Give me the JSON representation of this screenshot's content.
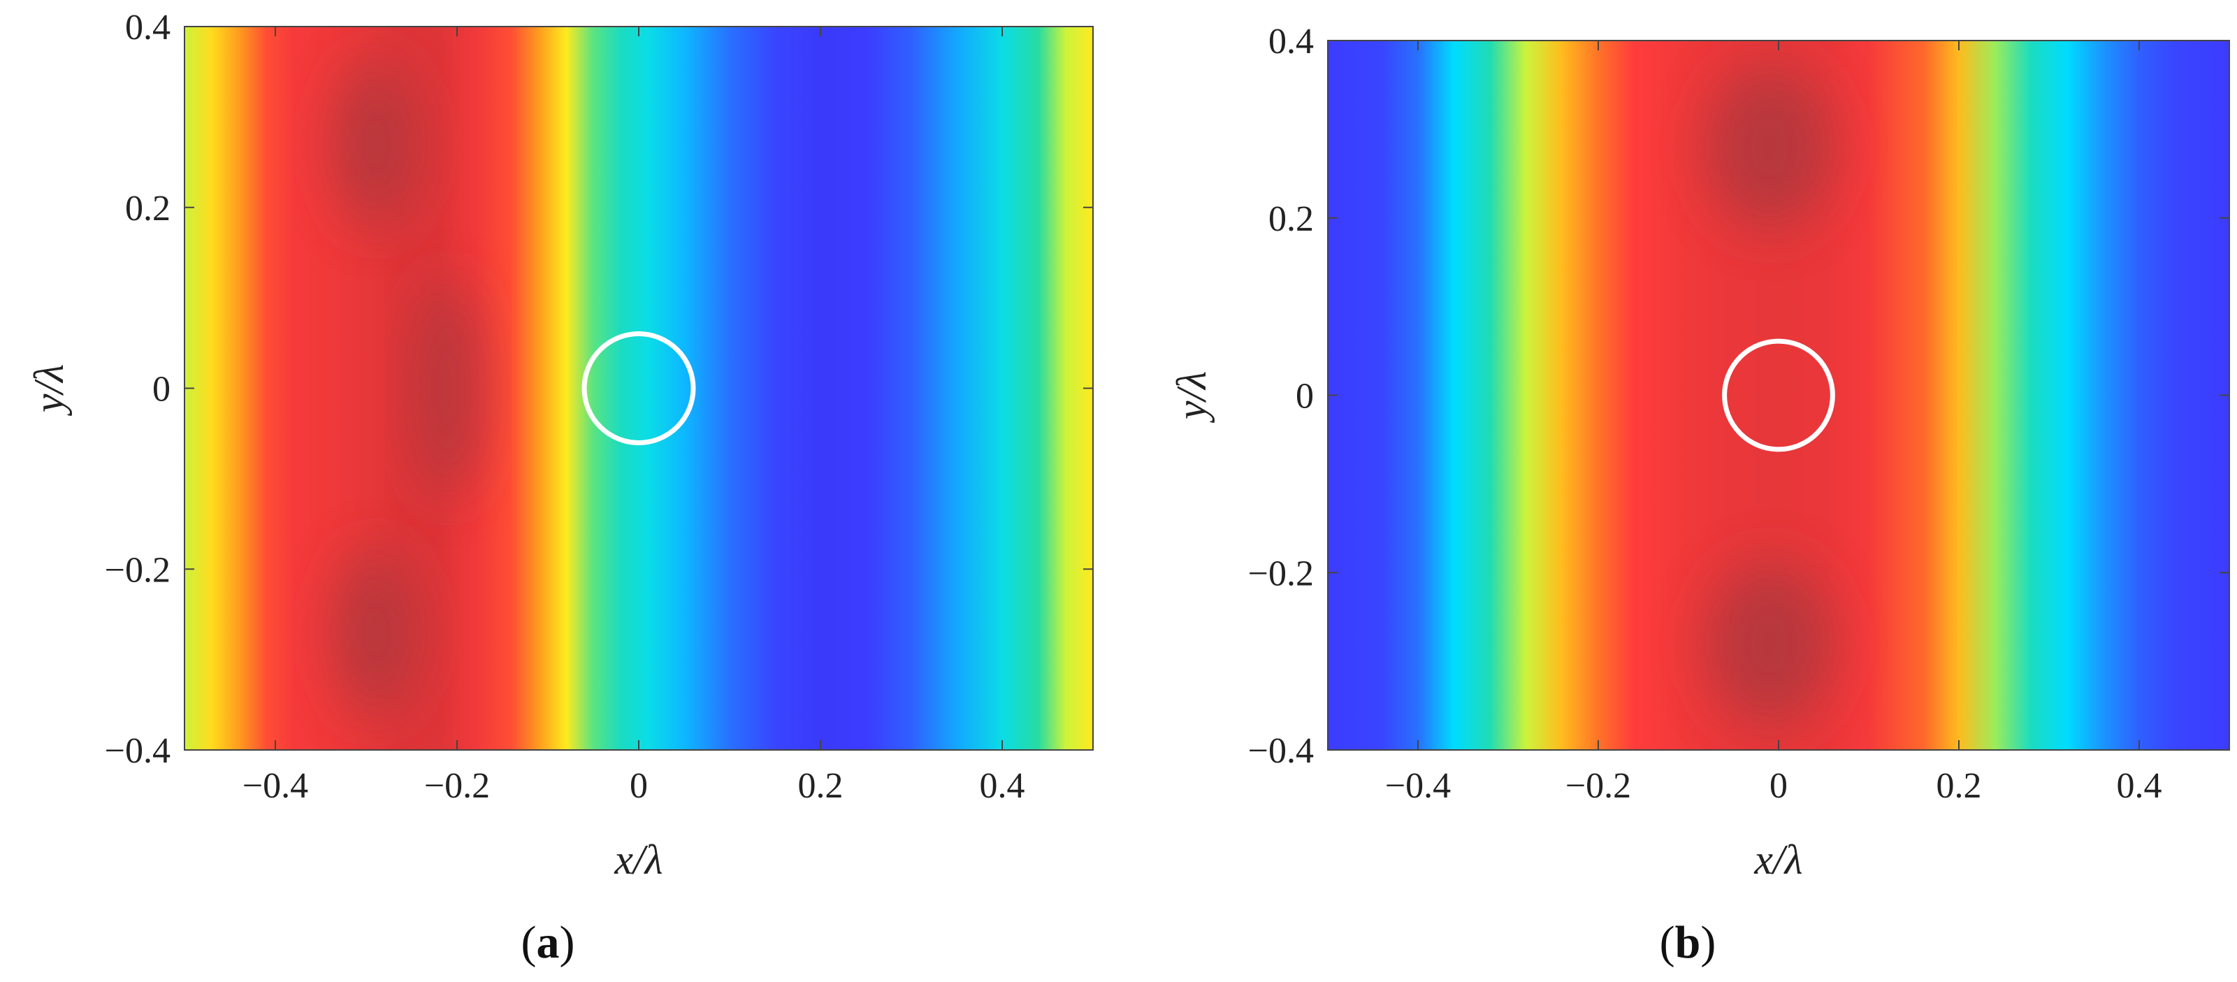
{
  "figure_labels": {
    "a": {
      "open": "(",
      "letter": "a",
      "close": ")"
    },
    "b": {
      "open": "(",
      "letter": "b",
      "close": ")"
    }
  },
  "chart_data": [
    {
      "type": "heatmap",
      "panel": "a",
      "title": "",
      "xlabel": "x/λ",
      "ylabel": "y/λ",
      "xlim": [
        -0.5,
        0.5
      ],
      "ylim": [
        -0.4,
        0.4
      ],
      "xticks": [
        -0.4,
        -0.2,
        0,
        0.2,
        0.4
      ],
      "xtick_labels": [
        "−0.4",
        "−0.2",
        "0",
        "0.2",
        "0.4"
      ],
      "yticks": [
        -0.4,
        -0.2,
        0,
        0.2,
        0.4
      ],
      "ytick_labels": [
        "−0.4",
        "−0.2",
        "0",
        "0.2",
        "0.4"
      ],
      "colormap": "jet",
      "field_profile_along_x": {
        "x": [
          -0.5,
          -0.47,
          -0.44,
          -0.41,
          -0.38,
          -0.34,
          -0.3,
          -0.26,
          -0.22,
          -0.18,
          -0.14,
          -0.11,
          -0.08,
          -0.05,
          -0.02,
          0.01,
          0.05,
          0.1,
          0.15,
          0.2,
          0.25,
          0.3,
          0.35,
          0.4,
          0.44,
          0.47,
          0.5
        ],
        "value": [
          0.55,
          0.62,
          0.7,
          0.82,
          0.88,
          0.9,
          0.93,
          0.96,
          0.96,
          0.9,
          0.82,
          0.7,
          0.6,
          0.48,
          0.4,
          0.34,
          0.26,
          0.18,
          0.13,
          0.11,
          0.12,
          0.16,
          0.24,
          0.34,
          0.45,
          0.55,
          0.6
        ]
      },
      "dark_spots": [
        {
          "x": -0.29,
          "y": 0.27,
          "rx": 0.045,
          "ry": 0.09
        },
        {
          "x": -0.21,
          "y": 0.0,
          "rx": 0.035,
          "ry": 0.12
        },
        {
          "x": -0.29,
          "y": -0.27,
          "rx": 0.045,
          "ry": 0.09
        }
      ],
      "circle": {
        "cx": 0,
        "cy": 0,
        "r": 0.06,
        "color": "#ffffff"
      }
    },
    {
      "type": "heatmap",
      "panel": "b",
      "title": "",
      "xlabel": "x/λ",
      "ylabel": "y/λ",
      "xlim": [
        -0.5,
        0.5
      ],
      "ylim": [
        -0.4,
        0.4
      ],
      "xticks": [
        -0.4,
        -0.2,
        0,
        0.2,
        0.4
      ],
      "xtick_labels": [
        "−0.4",
        "−0.2",
        "0",
        "0.2",
        "0.4"
      ],
      "yticks": [
        -0.4,
        -0.2,
        0,
        0.2,
        0.4
      ],
      "ytick_labels": [
        "−0.4",
        "−0.2",
        "0",
        "0.2",
        "0.4"
      ],
      "colormap": "jet",
      "field_profile_along_x": {
        "x": [
          -0.5,
          -0.44,
          -0.4,
          -0.36,
          -0.32,
          -0.28,
          -0.24,
          -0.2,
          -0.16,
          -0.1,
          -0.05,
          0.0,
          0.05,
          0.1,
          0.16,
          0.2,
          0.24,
          0.28,
          0.32,
          0.36,
          0.4,
          0.44,
          0.5
        ],
        "value": [
          0.12,
          0.13,
          0.18,
          0.3,
          0.42,
          0.55,
          0.66,
          0.76,
          0.85,
          0.9,
          0.92,
          0.93,
          0.92,
          0.88,
          0.78,
          0.66,
          0.52,
          0.4,
          0.3,
          0.22,
          0.16,
          0.13,
          0.12
        ]
      },
      "dark_spots": [
        {
          "x": -0.01,
          "y": 0.28,
          "rx": 0.07,
          "ry": 0.09
        },
        {
          "x": -0.01,
          "y": -0.28,
          "rx": 0.07,
          "ry": 0.09
        }
      ],
      "circle": {
        "cx": 0,
        "cy": 0,
        "r": 0.06,
        "color": "#ffffff"
      }
    }
  ]
}
